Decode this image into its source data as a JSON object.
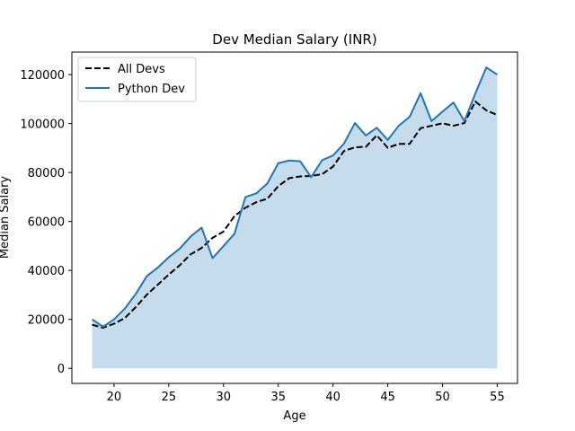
{
  "chart_data": {
    "type": "line",
    "title": "Dev Median Salary (INR)",
    "xlabel": "Age",
    "ylabel": "Median Salary",
    "xlim": [
      16.15,
      56.85
    ],
    "ylim": [
      -6150,
      129200
    ],
    "grid": false,
    "legend_position": "top-left",
    "x": [
      18,
      19,
      20,
      21,
      22,
      23,
      24,
      25,
      26,
      27,
      28,
      29,
      30,
      31,
      32,
      33,
      34,
      35,
      36,
      37,
      38,
      39,
      40,
      41,
      42,
      43,
      44,
      45,
      46,
      47,
      48,
      49,
      50,
      51,
      52,
      53,
      54,
      55
    ],
    "x_ticks": [
      20,
      25,
      30,
      35,
      40,
      45,
      50,
      55
    ],
    "x_tick_labels": [
      "20",
      "25",
      "30",
      "35",
      "40",
      "45",
      "50",
      "55"
    ],
    "y_ticks": [
      0,
      20000,
      40000,
      60000,
      80000,
      100000,
      120000
    ],
    "y_tick_labels": [
      "0",
      "20000",
      "40000",
      "60000",
      "80000",
      "100000",
      "120000"
    ],
    "series": [
      {
        "name": "All Devs",
        "style": "dashed",
        "color": "#000000",
        "values": [
          17800,
          16600,
          18200,
          20600,
          25100,
          30100,
          34200,
          38300,
          42100,
          46600,
          49200,
          53300,
          55900,
          62200,
          65600,
          67900,
          69300,
          74400,
          77700,
          78400,
          78600,
          79300,
          82400,
          88800,
          90300,
          90500,
          95200,
          90100,
          91700,
          91700,
          98100,
          99100,
          100100,
          99100,
          100200,
          109000,
          105400,
          103500
        ]
      },
      {
        "name": "Python Dev",
        "style": "solid",
        "color": "#1f77b4",
        "fill": "#c6dbec",
        "values": [
          20000,
          17000,
          20000,
          24500,
          30500,
          37700,
          41200,
          45400,
          48900,
          53900,
          57500,
          45000,
          50000,
          55000,
          70000,
          71500,
          75500,
          83800,
          84900,
          84600,
          78100,
          85000,
          87000,
          91800,
          100200,
          95100,
          98300,
          93300,
          99100,
          102800,
          112400,
          101000,
          104900,
          108600,
          101000,
          112300,
          122900,
          120000
        ]
      }
    ]
  }
}
